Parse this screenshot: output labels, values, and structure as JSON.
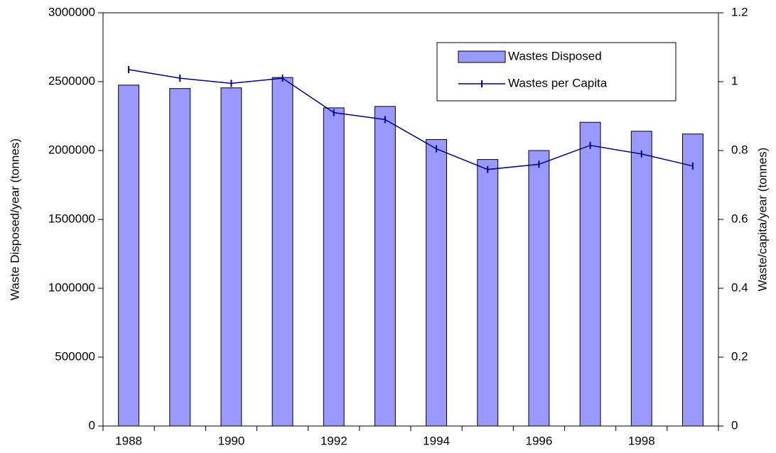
{
  "chart_data": {
    "type": "bar",
    "categories": [
      "1988",
      null,
      "1990",
      null,
      "1992",
      null,
      "1994",
      null,
      "1996",
      null,
      "1998",
      null
    ],
    "series": [
      {
        "name": "Wastes Disposed",
        "type": "bar",
        "color": "#9999ff",
        "values": [
          2475000,
          2450000,
          2455000,
          2530000,
          2310000,
          2320000,
          2080000,
          1935000,
          2000000,
          2205000,
          2140000,
          2120000
        ]
      },
      {
        "name": "Wastes per Capita",
        "type": "line",
        "axis": "y2",
        "color": "#000080",
        "values": [
          1.035,
          1.01,
          0.995,
          1.01,
          0.91,
          0.89,
          0.805,
          0.745,
          0.76,
          0.815,
          0.79,
          0.755
        ]
      }
    ],
    "ylabel": "Waste Disposed/year (tonnes)",
    "y2label": "Waste/capita/year (tonnes)",
    "ylim": [
      0,
      3000000
    ],
    "yticks": [
      0,
      500000,
      1000000,
      1500000,
      2000000,
      2500000,
      3000000
    ],
    "y2lim": [
      0,
      1.2
    ],
    "y2ticks": [
      0,
      0.2,
      0.4,
      0.6,
      0.8,
      1,
      1.2
    ],
    "legend": "upper right"
  }
}
